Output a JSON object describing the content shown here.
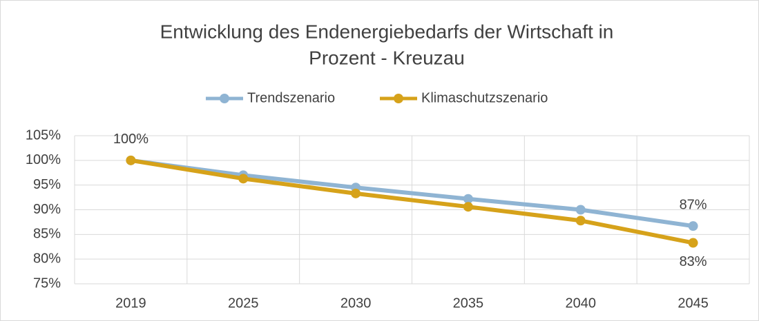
{
  "chart_data": {
    "type": "line",
    "title": [
      "Entwicklung des Endenergiebedarfs der Wirtschaft in",
      "Prozent - Kreuzau"
    ],
    "categories": [
      "2019",
      "2025",
      "2030",
      "2035",
      "2040",
      "2045"
    ],
    "series": [
      {
        "name": "Trendszenario",
        "color": "#8fb4d3",
        "values": [
          100,
          97,
          94.5,
          92.2,
          90,
          86.7
        ],
        "value_labels": [
          "100%",
          null,
          null,
          null,
          null,
          "87%"
        ]
      },
      {
        "name": "Klimaschutzszenario",
        "color": "#d6a21a",
        "values": [
          100,
          96.3,
          93.3,
          90.6,
          87.8,
          83.3
        ],
        "value_labels": [
          null,
          null,
          null,
          null,
          null,
          "83%"
        ]
      }
    ],
    "ylim": [
      75,
      105
    ],
    "yticks": [
      {
        "value": 75,
        "label": "75%"
      },
      {
        "value": 80,
        "label": "80%"
      },
      {
        "value": 85,
        "label": "85%"
      },
      {
        "value": 90,
        "label": "90%"
      },
      {
        "value": 95,
        "label": "95%"
      },
      {
        "value": 100,
        "label": "100%"
      },
      {
        "value": 105,
        "label": "105%"
      }
    ],
    "grid": true,
    "legend": "top"
  }
}
